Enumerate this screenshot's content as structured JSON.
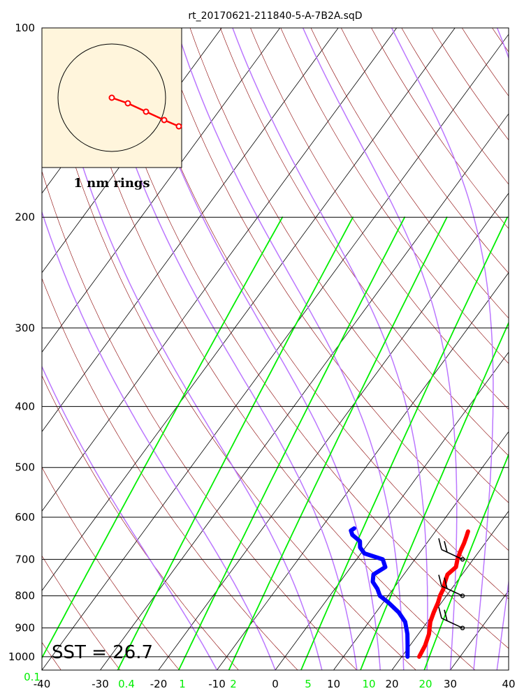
{
  "chart_data": {
    "type": "line",
    "subtype": "skew-T log-P sounding",
    "title": "rt_20170621-211840-5-A-7B2A.sqD",
    "y_axis": {
      "scale": "log",
      "ylim": [
        1050,
        100
      ],
      "ticks": [
        100,
        200,
        300,
        400,
        500,
        600,
        700,
        800,
        900,
        1000
      ],
      "grid": true
    },
    "x_axis": {
      "xlim": [
        -40,
        40
      ],
      "ticks": [
        -40,
        -30,
        -20,
        -10,
        0,
        10,
        20,
        30,
        40
      ],
      "skewed": true
    },
    "mixing_ratio_labels": [
      "0.1",
      "0.4",
      "1",
      "2",
      "5",
      "10",
      "20"
    ],
    "mixing_ratio_values": [
      0.1,
      0.4,
      1,
      2,
      5,
      10,
      20
    ],
    "sst_label": "SST = 26.7",
    "series": [
      {
        "color": "#ff0000",
        "points": [
          [
            1000,
            23.0
          ],
          [
            960,
            22.6
          ],
          [
            920,
            21.8
          ],
          [
            880,
            20.5
          ],
          [
            850,
            19.9
          ],
          [
            820,
            19.4
          ],
          [
            800,
            18.9
          ],
          [
            780,
            18.6
          ],
          [
            760,
            18.0
          ],
          [
            740,
            17.5
          ],
          [
            720,
            18.0
          ],
          [
            700,
            17.3
          ],
          [
            680,
            16.8
          ],
          [
            660,
            16.4
          ],
          [
            645,
            16.0
          ],
          [
            632,
            15.6
          ]
        ]
      },
      {
        "color": "#0000ff",
        "points": [
          [
            1000,
            21.0
          ],
          [
            960,
            19.6
          ],
          [
            920,
            18.1
          ],
          [
            880,
            16.2
          ],
          [
            850,
            13.9
          ],
          [
            820,
            10.9
          ],
          [
            800,
            8.6
          ],
          [
            780,
            7.3
          ],
          [
            760,
            5.6
          ],
          [
            740,
            4.8
          ],
          [
            720,
            5.9
          ],
          [
            700,
            4.5
          ],
          [
            685,
            0.6
          ],
          [
            670,
            -0.9
          ],
          [
            655,
            -1.7
          ],
          [
            640,
            -3.8
          ],
          [
            630,
            -4.6
          ],
          [
            625,
            -4.3
          ]
        ]
      }
    ],
    "wind_barbs": [
      {
        "p": 700,
        "speed_kt": 20
      },
      {
        "p": 800,
        "speed_kt": 20
      },
      {
        "p": 900,
        "speed_kt": 20
      }
    ],
    "inset": {
      "label": "1 nm rings",
      "background": "#fff5dc",
      "track_color": "#ff0000"
    },
    "colors": {
      "isotherms": "#000000",
      "dry_adiabats": "#8b0000",
      "moist_adiabats": "#bb77ff",
      "mixing_ratio": "#00ee00",
      "temperature": "#ff0000",
      "dewpoint": "#0000ff"
    }
  }
}
